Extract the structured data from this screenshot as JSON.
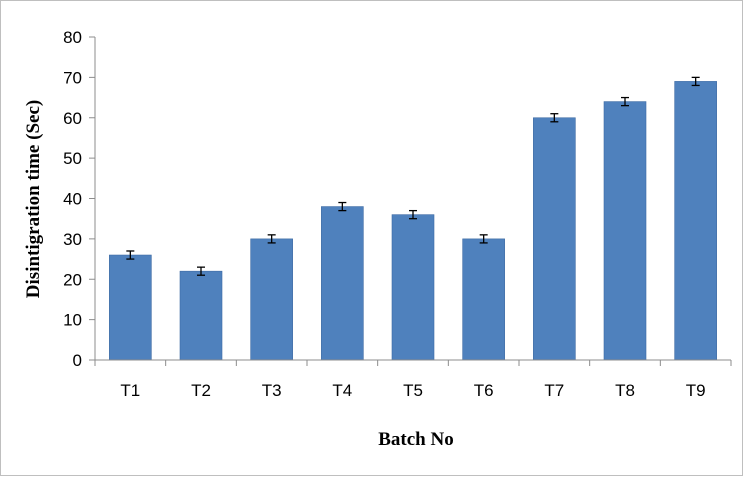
{
  "chart_data": {
    "type": "bar",
    "title": "",
    "xlabel": "Batch No",
    "ylabel": "Disintigration time (Sec)",
    "categories": [
      "T1",
      "T2",
      "T3",
      "T4",
      "T5",
      "T6",
      "T7",
      "T8",
      "T9"
    ],
    "series": [
      {
        "values": [
          26,
          22,
          30,
          38,
          36,
          30,
          60,
          64,
          69
        ],
        "error": [
          1,
          1,
          1,
          1,
          1,
          1,
          1,
          1,
          1
        ]
      }
    ],
    "ylim": [
      0,
      80
    ],
    "yticks": [
      0,
      10,
      20,
      30,
      40,
      50,
      60,
      70,
      80
    ],
    "grid": false,
    "legend": "none",
    "colors": {
      "bar": "#4f81bd",
      "bar_edge": "#3c6aa3",
      "axis": "#8c8c8c",
      "error_bar": "#000000"
    }
  }
}
